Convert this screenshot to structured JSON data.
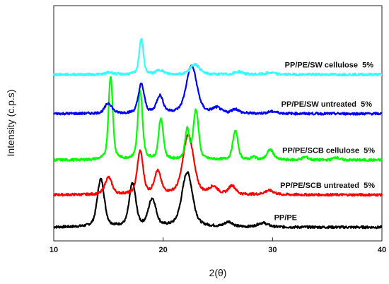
{
  "chart_data": {
    "type": "line",
    "title": "",
    "xlabel": "2(θ)",
    "ylabel": "Intensity (c.p.s)",
    "xlim": [
      10,
      40
    ],
    "x_ticks": [
      "10",
      "20",
      "30",
      "40"
    ],
    "y_ticks_labeled": false,
    "grid": false,
    "legend": "inline labels at right of each trace",
    "series": [
      {
        "name": "PP/PE",
        "color": "#000000",
        "baseline": 0.0,
        "peaks": [
          [
            14.3,
            14.0,
            0.3
          ],
          [
            17.2,
            12.5,
            0.28
          ],
          [
            19.0,
            8.0,
            0.32
          ],
          [
            22.2,
            16.0,
            0.45
          ],
          [
            26.0,
            1.4,
            0.35
          ],
          [
            29.1,
            1.2,
            0.45
          ]
        ]
      },
      {
        "name": "PP/PE/SCB untreated  5%",
        "color": "#ff0000",
        "baseline": 9.5,
        "peaks": [
          [
            15.0,
            5.0,
            0.3
          ],
          [
            17.9,
            12.5,
            0.25
          ],
          [
            19.5,
            6.5,
            0.28
          ],
          [
            22.3,
            17.5,
            0.45
          ],
          [
            24.6,
            2.0,
            0.35
          ],
          [
            26.3,
            2.5,
            0.3
          ],
          [
            29.7,
            1.2,
            0.4
          ]
        ]
      },
      {
        "name": "PP/PE/SCB cellulose  5%",
        "color": "#00ff00",
        "baseline": 19.7,
        "peaks": [
          [
            15.2,
            24.5,
            0.18
          ],
          [
            17.9,
            20.0,
            0.2
          ],
          [
            19.8,
            12.0,
            0.2
          ],
          [
            22.2,
            8.5,
            0.18
          ],
          [
            23.0,
            14.5,
            0.22
          ],
          [
            26.6,
            8.5,
            0.22
          ],
          [
            29.8,
            3.0,
            0.28
          ],
          [
            28.3,
            0.8,
            0.2
          ],
          [
            33.0,
            0.9,
            0.25
          ],
          [
            35.8,
            0.8,
            0.25
          ]
        ]
      },
      {
        "name": "PP/PE/SW untreated  5%",
        "color": "#0000ff",
        "baseline": 33.3,
        "peaks": [
          [
            15.0,
            3.0,
            0.3
          ],
          [
            18.0,
            8.5,
            0.25
          ],
          [
            19.7,
            5.0,
            0.28
          ],
          [
            22.6,
            14.0,
            0.45
          ],
          [
            24.9,
            1.5,
            0.35
          ],
          [
            26.6,
            1.2,
            0.3
          ],
          [
            30.0,
            0.6,
            0.4
          ]
        ]
      },
      {
        "name": "PP/PE/SW cellulose  5%",
        "color": "#33ffff",
        "baseline": 44.8,
        "peaks": [
          [
            15.1,
            0.6,
            0.3
          ],
          [
            18.0,
            10.5,
            0.18
          ],
          [
            19.7,
            1.2,
            0.3
          ],
          [
            22.9,
            3.0,
            0.4
          ],
          [
            26.9,
            0.8,
            0.35
          ],
          [
            29.8,
            0.5,
            0.4
          ]
        ]
      }
    ]
  }
}
